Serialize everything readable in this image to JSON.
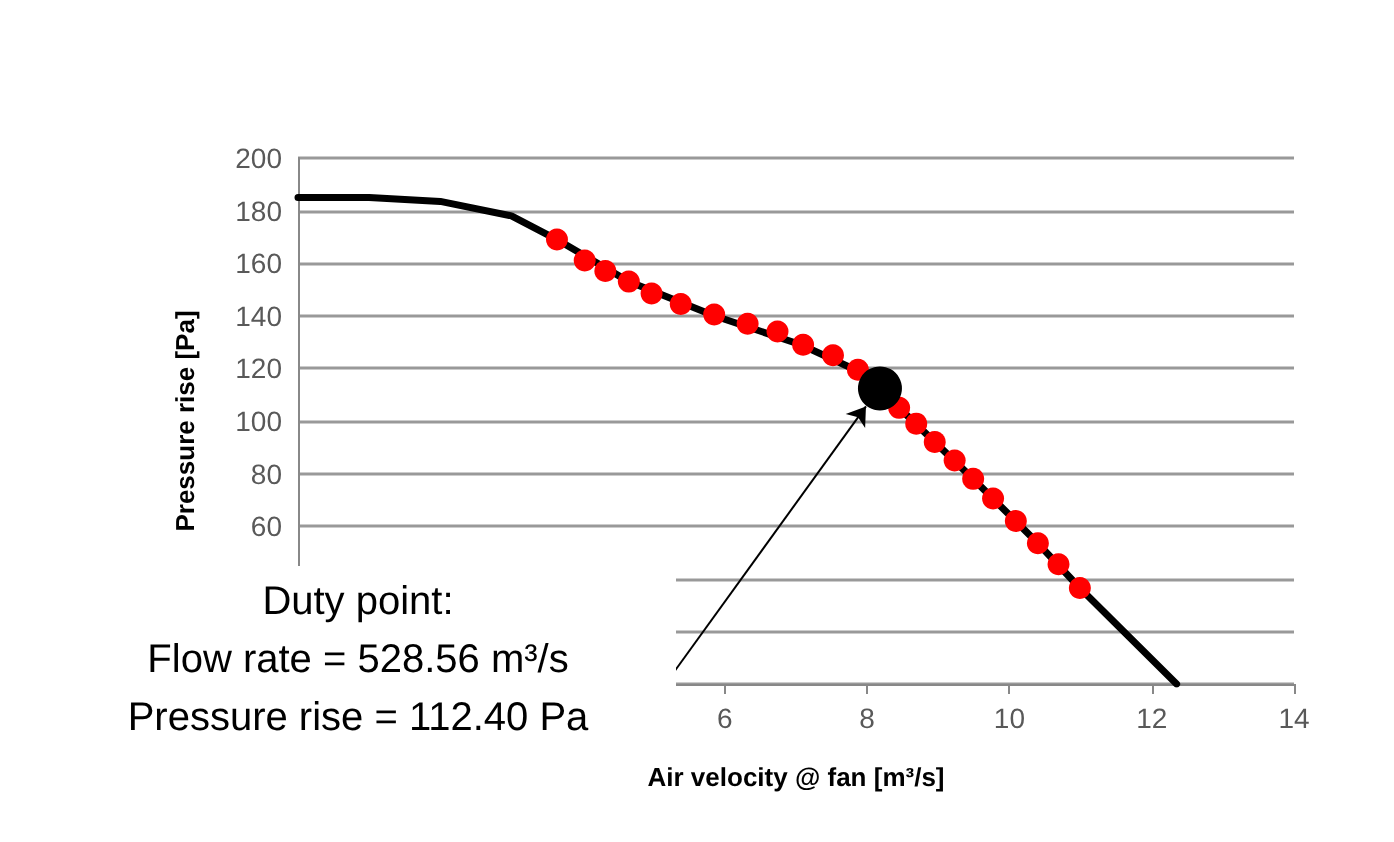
{
  "chart_data": {
    "type": "line",
    "xlabel": "Air velocity @ fan [m³/s]",
    "ylabel": "Pressure rise [Pa]",
    "annotations": [
      "Duty point:\nFlow rate = 528.56 m³/s\nPressure rise = 112.40 Pa"
    ],
    "series": [
      {
        "color": "#000000",
        "marker": "none",
        "x": [
          0,
          1,
          2,
          3,
          3.64,
          4.65,
          5.85,
          7.07,
          7.87,
          8.45,
          9.49,
          10.4,
          10.99,
          12.35
        ],
        "values": [
          185,
          185,
          183.5,
          178,
          169,
          153,
          140,
          129,
          119,
          105,
          78,
          53.5,
          36.5,
          0
        ]
      },
      {
        "type": "scatter",
        "color": "#ff0000",
        "marker": "circle",
        "x": [
          3.64,
          4.03,
          4.32,
          4.65,
          4.97,
          5.38,
          5.85,
          6.32,
          6.74,
          7.1,
          7.52,
          7.87,
          8.45,
          8.69,
          8.95,
          9.23,
          9.49,
          9.77,
          10.09,
          10.4,
          10.69,
          10.99
        ],
        "values": [
          169,
          161,
          157,
          153,
          148.5,
          144.5,
          140.5,
          137,
          134,
          129,
          125,
          119.5,
          105,
          99,
          92,
          85,
          78,
          70.5,
          62,
          53.5,
          45.5,
          36.5
        ]
      },
      {
        "type": "scatter",
        "color": "#000000",
        "marker": "circle",
        "x": [
          8.18
        ],
        "values": [
          112.4
        ]
      }
    ],
    "xlim": [
      0,
      14
    ],
    "xticks": [
      6,
      8,
      10,
      12,
      14
    ],
    "ylim": [
      0,
      200
    ],
    "yticks": [
      {
        "value": 0,
        "label": null
      },
      {
        "value": 20,
        "label": null
      },
      {
        "value": 40,
        "label": null
      },
      60,
      80,
      100,
      120,
      140,
      160,
      180,
      200
    ],
    "grid": "y"
  }
}
